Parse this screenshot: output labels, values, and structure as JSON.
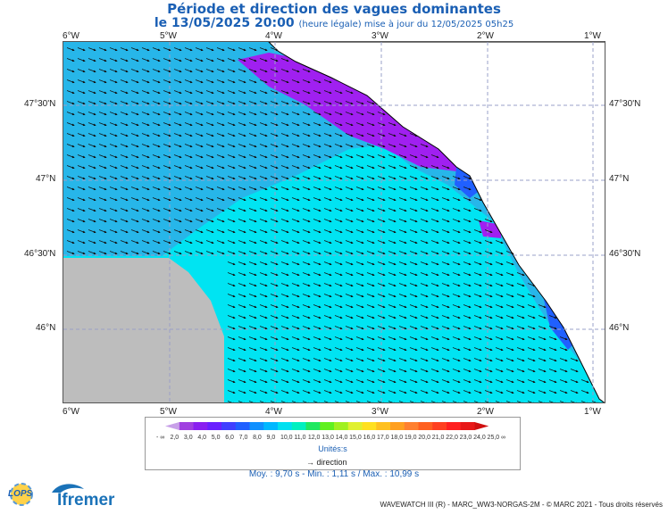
{
  "title": "Période et direction des vagues dominantes",
  "subtitle_date": "le 13/05/2025 20:00",
  "subtitle_note": "(heure légale) mise à jour du 12/05/2025 05h25",
  "lon_ticks": [
    "6°W",
    "5°W",
    "4°W",
    "3°W",
    "2°W",
    "1°W"
  ],
  "lat_ticks": [
    "47°30'N",
    "47°N",
    "46°30'N",
    "46°N"
  ],
  "legend": {
    "values": [
      "- ∞",
      "2,0",
      "3,0",
      "4,0",
      "5,0",
      "6,0",
      "7,0",
      "8,0",
      "9,0",
      "10,0",
      "11,0",
      "12,0",
      "13,0",
      "14,0",
      "15,0",
      "16,0",
      "17,0",
      "18,0",
      "19,0",
      "20,0",
      "21,0",
      "22,0",
      "23,0",
      "24,0",
      "25,0",
      "∞"
    ],
    "colors": [
      "#c8a0e8",
      "#a040e0",
      "#8a1ff0",
      "#6a20ff",
      "#4040ff",
      "#2060ff",
      "#1090ff",
      "#00b8ff",
      "#00e0f0",
      "#00f0c0",
      "#20e860",
      "#60f020",
      "#a0f020",
      "#e0f030",
      "#ffe020",
      "#ffc020",
      "#ffa020",
      "#ff8030",
      "#ff6020",
      "#ff4020",
      "#ff2020",
      "#e81818",
      "#d01010"
    ],
    "unit": "Unités:s",
    "direction_label": "direction"
  },
  "stats": "Moy. : 9,70 s   -   Min. : 1,11 s / Max. : 10,99 s",
  "footer": "WAVEWATCH III (R) - MARC_WW3-NORGAS-2M - © MARC 2021 - Tous droits réservés",
  "logos": {
    "lops": "LOPS",
    "ifremer": "Ifremer"
  },
  "colors": {
    "sea_open": "#27b6e9",
    "sea_mid": "#00e4f2",
    "coast": "#a020f0",
    "coast_blue": "#2060ff",
    "nodata": "#bdbdbd",
    "land": "#ffffff"
  }
}
